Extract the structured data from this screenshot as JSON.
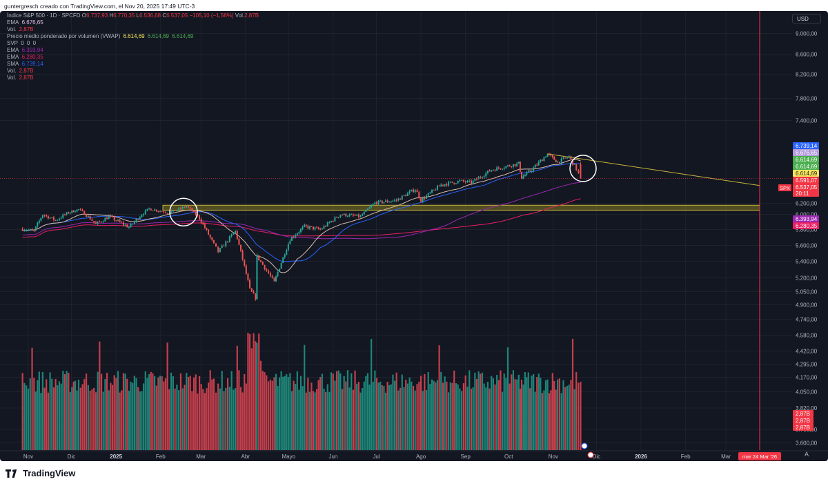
{
  "header_credit": "guntergresch creado con TradingView.com, el Nov 20, 2025 17:49 UTC-3",
  "brand": {
    "name": "TradingView",
    "icon": "tradingview-logo-icon"
  },
  "legend": {
    "symbol": "Índice S&P 500 · 1D · SPCFD",
    "ohlc": [
      {
        "k": "O",
        "v": "6.737,93"
      },
      {
        "k": "H",
        "v": "6.770,35"
      },
      {
        "k": "L",
        "v": "6.536,68"
      },
      {
        "k": "C",
        "v": "6.537,05"
      }
    ],
    "change": "−105,10 (−1,58%)",
    "vol_label": "Vol.",
    "vol_value": "2,87B",
    "rows": [
      {
        "label": "EMA",
        "values": [
          "6.676,65"
        ],
        "color": "#e1bee7"
      },
      {
        "label": "Vol.",
        "values": [
          "2,87B"
        ],
        "color": "#f23645"
      },
      {
        "label": "Precio medio ponderado por volumen (VWAP)",
        "values": [
          "6.614,69",
          "6.614,69",
          "6.614,69"
        ],
        "colors": [
          "#f7e55a",
          "#4caf50",
          "#4caf50"
        ]
      },
      {
        "label": "SVP",
        "values": [
          "0",
          "0",
          "0"
        ],
        "color": "#b2b5be"
      },
      {
        "label": "EMA",
        "values": [
          "6.393,94"
        ],
        "color": "#9c27b0"
      },
      {
        "label": "EMA",
        "values": [
          "6.280,35"
        ],
        "color": "#e91e63"
      },
      {
        "label": "SMA",
        "values": [
          "6.739,14"
        ],
        "color": "#2962ff"
      },
      {
        "label": "Vol.",
        "values": [
          "2,87B"
        ],
        "color": "#f23645"
      },
      {
        "label": "Vol.",
        "values": [
          "2,87B"
        ],
        "color": "#f23645"
      }
    ]
  },
  "currency": "USD",
  "chart_data": {
    "type": "candlestick",
    "symbol_tag": "SPX",
    "y_ticks": [
      9000,
      8600,
      8200,
      7800,
      7400,
      6200,
      6000,
      5800,
      5600,
      5400,
      5200,
      5050,
      4900,
      4740,
      4580,
      4420,
      4295,
      4170,
      4050,
      3820,
      3700,
      3600
    ],
    "y_tick_labels": [
      "9.000,00",
      "8.600,00",
      "8.200,00",
      "7.800,00",
      "7.400,00",
      "6.200,00",
      "6.000,00",
      "5.800,00",
      "5.600,00",
      "5.400,00",
      "5.200,00",
      "5.050,00",
      "4.900,00",
      "4.740,00",
      "4.580,00",
      "4.420,00",
      "4.295,00",
      "4.170,00",
      "4.050,00",
      "3.820,00",
      "3.700,00",
      "3.600,00"
    ],
    "x_ticks": [
      "Nov",
      "Dic",
      "2025",
      "Feb",
      "Mar",
      "Abr",
      "Mayo",
      "Jun",
      "Jul",
      "Ago",
      "Sep",
      "Oct",
      "Nov",
      "Dic",
      "2026",
      "Feb",
      "Mar"
    ],
    "x_ticks_bold": [
      "2025",
      "2026"
    ],
    "x_cursor_label": "mar 24 Mar '26",
    "price_path": [
      [
        "2024-10-28",
        5810
      ],
      [
        "2024-11-05",
        5780
      ],
      [
        "2024-11-11",
        6000
      ],
      [
        "2024-11-20",
        5920
      ],
      [
        "2024-11-29",
        6030
      ],
      [
        "2024-12-06",
        6090
      ],
      [
        "2024-12-18",
        5870
      ],
      [
        "2024-12-27",
        5970
      ],
      [
        "2025-01-10",
        5830
      ],
      [
        "2025-01-24",
        6100
      ],
      [
        "2025-02-07",
        6030
      ],
      [
        "2025-02-19",
        6144
      ],
      [
        "2025-02-28",
        5950
      ],
      [
        "2025-03-10",
        5610
      ],
      [
        "2025-03-13",
        5520
      ],
      [
        "2025-03-25",
        5780
      ],
      [
        "2025-04-04",
        5070
      ],
      [
        "2025-04-08",
        4980
      ],
      [
        "2025-04-09",
        5460
      ],
      [
        "2025-04-21",
        5150
      ],
      [
        "2025-05-02",
        5680
      ],
      [
        "2025-05-12",
        5840
      ],
      [
        "2025-05-23",
        5800
      ],
      [
        "2025-06-06",
        6000
      ],
      [
        "2025-06-20",
        5970
      ],
      [
        "2025-06-30",
        6205
      ],
      [
        "2025-07-15",
        6240
      ],
      [
        "2025-07-28",
        6390
      ],
      [
        "2025-08-01",
        6240
      ],
      [
        "2025-08-15",
        6450
      ],
      [
        "2025-08-28",
        6500
      ],
      [
        "2025-09-05",
        6480
      ],
      [
        "2025-09-19",
        6660
      ],
      [
        "2025-10-08",
        6750
      ],
      [
        "2025-10-10",
        6550
      ],
      [
        "2025-10-17",
        6660
      ],
      [
        "2025-10-28",
        6890
      ],
      [
        "2025-11-04",
        6770
      ],
      [
        "2025-11-12",
        6850
      ],
      [
        "2025-11-17",
        6670
      ],
      [
        "2025-11-20",
        6537
      ]
    ],
    "volume": {
      "last_label": "2,87B"
    },
    "overlays": [
      "EMA 6.676,65",
      "VWAP 6.614,69",
      "EMA 6.393,94",
      "EMA 6.280,35",
      "SMA 6.739,14"
    ],
    "price_labels": [
      {
        "text": "6.739,14",
        "color": "#2962ff"
      },
      {
        "text": "6.676,65",
        "color": "#b39ddb"
      },
      {
        "text": "6.614,69",
        "color": "#4caf50"
      },
      {
        "text": "6.614,69",
        "color": "#4caf50"
      },
      {
        "text": "6.614,69",
        "color": "#f7e55a"
      },
      {
        "text": "6.591,07",
        "color": "#f23645"
      },
      {
        "text": "6.537,05",
        "color": "#f23645"
      },
      {
        "text": "20:11",
        "color": "#f23645"
      },
      {
        "text": "6.393,94",
        "color": "#9c27b0"
      },
      {
        "text": "6.280,35",
        "color": "#e91e63"
      }
    ],
    "volume_labels": [
      "2,87B",
      "2,87B",
      "2,87B"
    ],
    "annotations": [
      "support zone",
      "descending trendline",
      "circle Feb 2025",
      "circle Nov 2025"
    ],
    "colors": {
      "up": "#26a69a",
      "down": "#ef5350",
      "bg": "#131722",
      "grid": "#1e222d",
      "text": "#b2b5be"
    }
  }
}
